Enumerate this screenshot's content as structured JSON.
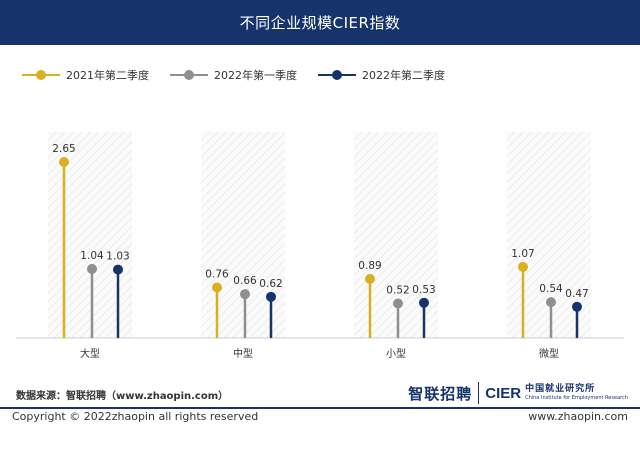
{
  "header": {
    "title": "不同企业规模CIER指数"
  },
  "legend": [
    {
      "label": "2021年第二季度",
      "color": "#d9b021"
    },
    {
      "label": "2022年第一季度",
      "color": "#8f8f8f"
    },
    {
      "label": "2022年第二季度",
      "color": "#16346b"
    }
  ],
  "chart_data": {
    "type": "lollipop",
    "title": "不同企业规模CIER指数",
    "categories": [
      "大型",
      "中型",
      "小型",
      "微型"
    ],
    "series": [
      {
        "name": "2021年第二季度",
        "values": [
          2.65,
          0.76,
          0.89,
          1.07
        ]
      },
      {
        "name": "2022年第一季度",
        "values": [
          1.04,
          0.66,
          0.52,
          0.54
        ]
      },
      {
        "name": "2022年第二季度",
        "values": [
          1.03,
          0.62,
          0.53,
          0.47
        ]
      }
    ],
    "ylim": [
      0,
      3.0
    ],
    "grid": false,
    "legend_position": "top-left"
  },
  "footer": {
    "source": "数据来源：智联招聘（www.zhaopin.com）",
    "logo_zhaopin": "智联招聘",
    "logo_cier": "CIER",
    "logo_cier_cn": "中国就业研究所",
    "logo_cier_en": "China Institute for Employment Research",
    "copyright": "Copyright © 2022zhaopin all rights reserved",
    "site": "www.zhaopin.com"
  }
}
